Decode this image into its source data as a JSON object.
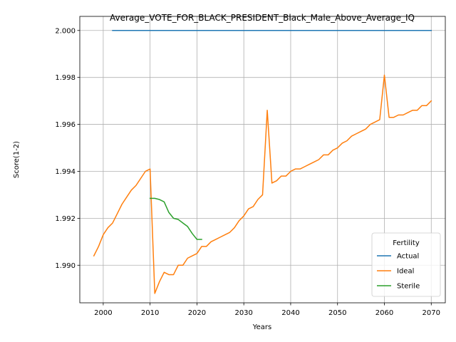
{
  "chart_data": {
    "type": "line",
    "title": "Average_VOTE_FOR_BLACK_PRESIDENT_Black_Male_Above_Average_IQ",
    "xlabel": "Years",
    "ylabel": "Score(1-2)",
    "xlim": [
      1995,
      2073
    ],
    "ylim": [
      1.9884,
      2.0006
    ],
    "x_ticks": [
      2000,
      2010,
      2020,
      2030,
      2040,
      2050,
      2060,
      2070
    ],
    "y_ticks": [
      1.99,
      1.992,
      1.994,
      1.996,
      1.998,
      2.0
    ],
    "y_tick_labels": [
      "1.990",
      "1.992",
      "1.994",
      "1.996",
      "1.998",
      "2.000"
    ],
    "grid": true,
    "legend": {
      "title": "Fertility",
      "position": "lower-right"
    },
    "series": [
      {
        "name": "Actual",
        "color": "#1f77b4",
        "x": [
          2002,
          2070
        ],
        "values": [
          2.0,
          2.0
        ]
      },
      {
        "name": "Ideal",
        "color": "#ff7f0e",
        "x": [
          1998,
          1999,
          2000,
          2001,
          2002,
          2003,
          2004,
          2005,
          2006,
          2007,
          2008,
          2009,
          2010,
          2011,
          2012,
          2013,
          2014,
          2015,
          2016,
          2017,
          2018,
          2019,
          2020,
          2021,
          2022,
          2023,
          2024,
          2025,
          2026,
          2027,
          2028,
          2029,
          2030,
          2031,
          2032,
          2033,
          2034,
          2035,
          2036,
          2037,
          2038,
          2039,
          2040,
          2041,
          2042,
          2043,
          2044,
          2045,
          2046,
          2047,
          2048,
          2049,
          2050,
          2051,
          2052,
          2053,
          2054,
          2055,
          2056,
          2057,
          2058,
          2059,
          2060,
          2061,
          2062,
          2063,
          2064,
          2065,
          2066,
          2067,
          2068,
          2069,
          2070
        ],
        "values": [
          1.9904,
          1.9908,
          1.9913,
          1.9916,
          1.9918,
          1.9922,
          1.9926,
          1.9929,
          1.9932,
          1.9934,
          1.9937,
          1.994,
          1.9941,
          1.9888,
          1.9893,
          1.9897,
          1.9896,
          1.9896,
          1.99,
          1.99,
          1.9903,
          1.9904,
          1.9905,
          1.9908,
          1.9908,
          1.991,
          1.9911,
          1.9912,
          1.9913,
          1.9914,
          1.9916,
          1.9919,
          1.9921,
          1.9924,
          1.9925,
          1.9928,
          1.993,
          1.9966,
          1.9935,
          1.9936,
          1.9938,
          1.9938,
          1.994,
          1.9941,
          1.9941,
          1.9942,
          1.9943,
          1.9944,
          1.9945,
          1.9947,
          1.9947,
          1.9949,
          1.995,
          1.9952,
          1.9953,
          1.9955,
          1.9956,
          1.9957,
          1.9958,
          1.996,
          1.9961,
          1.9962,
          1.9981,
          1.9963,
          1.9963,
          1.9964,
          1.9964,
          1.9965,
          1.9966,
          1.9966,
          1.9968,
          1.9968,
          1.997
        ]
      },
      {
        "name": "Sterile",
        "color": "#2ca02c",
        "x": [
          2010,
          2011,
          2012,
          2013,
          2014,
          2015,
          2016,
          2017,
          2018,
          2019,
          2020,
          2021
        ],
        "values": [
          1.99285,
          1.99285,
          1.9928,
          1.9927,
          1.99225,
          1.992,
          1.99195,
          1.9918,
          1.99165,
          1.99135,
          1.9911,
          1.9911
        ]
      }
    ]
  }
}
